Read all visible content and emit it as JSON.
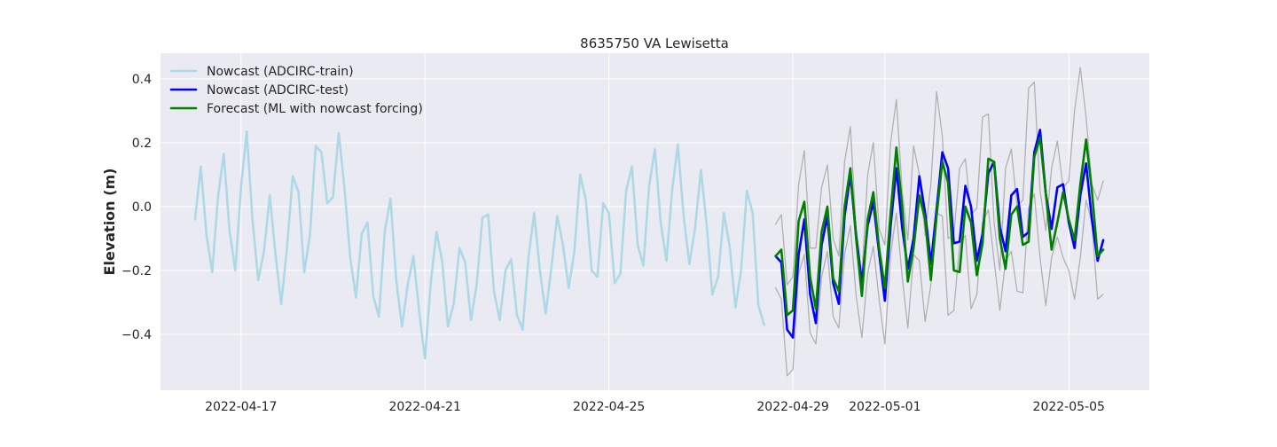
{
  "chart_data": {
    "type": "line",
    "title": "8635750 VA Lewisetta",
    "xlabel": "",
    "ylabel": "Elevation (m)",
    "x_axis": {
      "type": "time",
      "range": [
        "2022-04-15T06:00",
        "2022-05-06T18:00"
      ],
      "tick_dates": [
        "2022-04-17",
        "2022-04-21",
        "2022-04-25",
        "2022-04-29",
        "2022-05-01",
        "2022-05-05"
      ],
      "tick_labels": [
        "2022-04-17",
        "2022-04-21",
        "2022-04-25",
        "2022-04-29",
        "2022-05-01",
        "2022-05-05"
      ]
    },
    "y_axis": {
      "range": [
        -0.575,
        0.48
      ],
      "ticks": [
        -0.4,
        -0.2,
        0.0,
        0.2,
        0.4
      ],
      "tick_labels": [
        "−0.4",
        "−0.2",
        "0.0",
        "0.2",
        "0.4"
      ]
    },
    "grid": true,
    "legend_position": "top-left",
    "bands": [
      {
        "style": "thin-gray",
        "color": "#b0b0b0",
        "x": [
          "2022-04-28T15:00",
          "2022-04-28T18:00",
          "2022-04-28T21:00",
          "2022-04-29T00:00",
          "2022-04-29T03:00",
          "2022-04-29T06:00",
          "2022-04-29T09:00",
          "2022-04-29T12:00",
          "2022-04-29T15:00",
          "2022-04-29T18:00",
          "2022-04-29T21:00",
          "2022-04-30T00:00",
          "2022-04-30T03:00",
          "2022-04-30T06:00",
          "2022-04-30T09:00",
          "2022-04-30T12:00",
          "2022-04-30T15:00",
          "2022-04-30T18:00",
          "2022-04-30T21:00",
          "2022-05-01T00:00",
          "2022-05-01T03:00",
          "2022-05-01T06:00",
          "2022-05-01T09:00",
          "2022-05-01T12:00",
          "2022-05-01T15:00",
          "2022-05-01T18:00",
          "2022-05-01T21:00",
          "2022-05-02T00:00",
          "2022-05-02T03:00",
          "2022-05-02T06:00",
          "2022-05-02T09:00",
          "2022-05-02T12:00",
          "2022-05-02T15:00",
          "2022-05-02T18:00",
          "2022-05-02T21:00",
          "2022-05-03T00:00",
          "2022-05-03T03:00",
          "2022-05-03T06:00",
          "2022-05-03T09:00",
          "2022-05-03T12:00",
          "2022-05-03T15:00",
          "2022-05-03T18:00",
          "2022-05-03T21:00",
          "2022-05-04T00:00",
          "2022-05-04T03:00",
          "2022-05-04T06:00",
          "2022-05-04T09:00",
          "2022-05-04T12:00",
          "2022-05-04T15:00",
          "2022-05-04T18:00",
          "2022-05-04T21:00",
          "2022-05-05T00:00",
          "2022-05-05T03:00",
          "2022-05-05T06:00",
          "2022-05-05T09:00",
          "2022-05-05T12:00",
          "2022-05-05T15:00",
          "2022-05-05T18:00"
        ],
        "upper": [
          -0.055,
          -0.025,
          -0.245,
          -0.22,
          0.07,
          0.175,
          -0.13,
          -0.13,
          0.06,
          0.13,
          -0.1,
          -0.155,
          0.14,
          0.25,
          -0.07,
          -0.22,
          0.1,
          0.2,
          -0.07,
          -0.12,
          0.2,
          0.335,
          0.05,
          -0.105,
          0.19,
          0.1,
          -0.09,
          0.07,
          0.36,
          0.22,
          -0.1,
          -0.09,
          0.12,
          0.15,
          -0.025,
          -0.005,
          0.28,
          0.29,
          -0.05,
          -0.2,
          0.12,
          0.18,
          0.0,
          0.02,
          0.37,
          0.39,
          0.05,
          -0.075,
          0.12,
          0.205,
          0.06,
          0.08,
          0.3,
          0.435,
          0.28,
          0.07,
          0.02,
          0.08
        ],
        "lower": [
          -0.255,
          -0.29,
          -0.53,
          -0.51,
          -0.21,
          -0.15,
          -0.395,
          -0.43,
          -0.22,
          -0.14,
          -0.345,
          -0.38,
          -0.15,
          -0.06,
          -0.28,
          -0.41,
          -0.21,
          -0.125,
          -0.29,
          -0.43,
          -0.15,
          -0.02,
          -0.22,
          -0.38,
          -0.15,
          -0.17,
          -0.36,
          -0.245,
          -0.02,
          -0.03,
          -0.34,
          -0.325,
          -0.12,
          -0.09,
          -0.32,
          -0.275,
          -0.05,
          -0.01,
          -0.17,
          -0.325,
          -0.17,
          -0.14,
          -0.265,
          -0.27,
          -0.005,
          0.04,
          -0.16,
          -0.31,
          -0.16,
          -0.095,
          -0.16,
          -0.2,
          -0.29,
          -0.16,
          0.02,
          -0.05,
          -0.29,
          -0.275
        ]
      }
    ],
    "series": [
      {
        "name": "Nowcast (ADCIRC-train)",
        "color": "#add8e6",
        "x": [
          "2022-04-16T00:00",
          "2022-04-16T03:00",
          "2022-04-16T06:00",
          "2022-04-16T09:00",
          "2022-04-16T12:00",
          "2022-04-16T15:00",
          "2022-04-16T18:00",
          "2022-04-16T21:00",
          "2022-04-17T00:00",
          "2022-04-17T03:00",
          "2022-04-17T06:00",
          "2022-04-17T09:00",
          "2022-04-17T12:00",
          "2022-04-17T15:00",
          "2022-04-17T18:00",
          "2022-04-17T21:00",
          "2022-04-18T00:00",
          "2022-04-18T03:00",
          "2022-04-18T06:00",
          "2022-04-18T09:00",
          "2022-04-18T12:00",
          "2022-04-18T15:00",
          "2022-04-18T18:00",
          "2022-04-18T21:00",
          "2022-04-19T00:00",
          "2022-04-19T03:00",
          "2022-04-19T06:00",
          "2022-04-19T09:00",
          "2022-04-19T12:00",
          "2022-04-19T15:00",
          "2022-04-19T18:00",
          "2022-04-19T21:00",
          "2022-04-20T00:00",
          "2022-04-20T03:00",
          "2022-04-20T06:00",
          "2022-04-20T09:00",
          "2022-04-20T12:00",
          "2022-04-20T15:00",
          "2022-04-20T18:00",
          "2022-04-20T21:00",
          "2022-04-21T00:00",
          "2022-04-21T03:00",
          "2022-04-21T06:00",
          "2022-04-21T09:00",
          "2022-04-21T12:00",
          "2022-04-21T15:00",
          "2022-04-21T18:00",
          "2022-04-21T21:00",
          "2022-04-22T00:00",
          "2022-04-22T03:00",
          "2022-04-22T06:00",
          "2022-04-22T09:00",
          "2022-04-22T12:00",
          "2022-04-22T15:00",
          "2022-04-22T18:00",
          "2022-04-22T21:00",
          "2022-04-23T00:00",
          "2022-04-23T03:00",
          "2022-04-23T06:00",
          "2022-04-23T09:00",
          "2022-04-23T12:00",
          "2022-04-23T15:00",
          "2022-04-23T18:00",
          "2022-04-23T21:00",
          "2022-04-24T00:00",
          "2022-04-24T03:00",
          "2022-04-24T06:00",
          "2022-04-24T09:00",
          "2022-04-24T12:00",
          "2022-04-24T15:00",
          "2022-04-24T18:00",
          "2022-04-24T21:00",
          "2022-04-25T00:00",
          "2022-04-25T03:00",
          "2022-04-25T06:00",
          "2022-04-25T09:00",
          "2022-04-25T12:00",
          "2022-04-25T15:00",
          "2022-04-25T18:00",
          "2022-04-25T21:00",
          "2022-04-26T00:00",
          "2022-04-26T03:00",
          "2022-04-26T06:00",
          "2022-04-26T09:00",
          "2022-04-26T12:00",
          "2022-04-26T15:00",
          "2022-04-26T18:00",
          "2022-04-26T21:00",
          "2022-04-27T00:00",
          "2022-04-27T03:00",
          "2022-04-27T06:00",
          "2022-04-27T09:00",
          "2022-04-27T12:00",
          "2022-04-27T15:00",
          "2022-04-27T18:00",
          "2022-04-27T21:00",
          "2022-04-28T00:00",
          "2022-04-28T03:00",
          "2022-04-28T06:00",
          "2022-04-28T09:00"
        ],
        "y": [
          -0.04,
          0.125,
          -0.09,
          -0.205,
          0.03,
          0.165,
          -0.075,
          -0.2,
          0.06,
          0.235,
          -0.04,
          -0.23,
          -0.14,
          0.035,
          -0.15,
          -0.305,
          -0.13,
          0.095,
          0.045,
          -0.205,
          -0.09,
          0.19,
          0.17,
          0.01,
          0.03,
          0.23,
          0.06,
          -0.16,
          -0.285,
          -0.085,
          -0.05,
          -0.28,
          -0.345,
          -0.08,
          0.025,
          -0.23,
          -0.375,
          -0.245,
          -0.155,
          -0.33,
          -0.475,
          -0.24,
          -0.08,
          -0.17,
          -0.375,
          -0.305,
          -0.13,
          -0.175,
          -0.355,
          -0.245,
          -0.035,
          -0.025,
          -0.265,
          -0.355,
          -0.2,
          -0.165,
          -0.34,
          -0.385,
          -0.16,
          -0.02,
          -0.2,
          -0.335,
          -0.19,
          -0.03,
          -0.12,
          -0.255,
          -0.14,
          0.1,
          0.02,
          -0.2,
          -0.22,
          0.01,
          -0.02,
          -0.24,
          -0.21,
          0.05,
          0.125,
          -0.12,
          -0.185,
          0.065,
          0.18,
          -0.05,
          -0.17,
          0.05,
          0.195,
          -0.03,
          -0.18,
          -0.065,
          0.115,
          -0.055,
          -0.275,
          -0.22,
          -0.02,
          -0.125,
          -0.315,
          -0.2,
          0.05,
          -0.02,
          -0.31,
          -0.37
        ]
      },
      {
        "name": "Nowcast (ADCIRC-test)",
        "color": "#0000ff",
        "x": [
          "2022-04-28T15:00",
          "2022-04-28T18:00",
          "2022-04-28T21:00",
          "2022-04-29T00:00",
          "2022-04-29T03:00",
          "2022-04-29T06:00",
          "2022-04-29T09:00",
          "2022-04-29T12:00",
          "2022-04-29T15:00",
          "2022-04-29T18:00",
          "2022-04-29T21:00",
          "2022-04-30T00:00",
          "2022-04-30T03:00",
          "2022-04-30T06:00",
          "2022-04-30T09:00",
          "2022-04-30T12:00",
          "2022-04-30T15:00",
          "2022-04-30T18:00",
          "2022-04-30T21:00",
          "2022-05-01T00:00",
          "2022-05-01T03:00",
          "2022-05-01T06:00",
          "2022-05-01T09:00",
          "2022-05-01T12:00",
          "2022-05-01T15:00",
          "2022-05-01T18:00",
          "2022-05-01T21:00",
          "2022-05-02T00:00",
          "2022-05-02T03:00",
          "2022-05-02T06:00",
          "2022-05-02T09:00",
          "2022-05-02T12:00",
          "2022-05-02T15:00",
          "2022-05-02T18:00",
          "2022-05-02T21:00",
          "2022-05-03T00:00",
          "2022-05-03T03:00",
          "2022-05-03T06:00",
          "2022-05-03T09:00",
          "2022-05-03T12:00",
          "2022-05-03T15:00",
          "2022-05-03T18:00",
          "2022-05-03T21:00",
          "2022-05-04T00:00",
          "2022-05-04T03:00",
          "2022-05-04T06:00",
          "2022-05-04T09:00",
          "2022-05-04T12:00",
          "2022-05-04T15:00",
          "2022-05-04T18:00",
          "2022-05-04T21:00",
          "2022-05-05T00:00",
          "2022-05-05T03:00",
          "2022-05-05T06:00",
          "2022-05-05T09:00",
          "2022-05-05T12:00",
          "2022-05-05T15:00",
          "2022-05-05T18:00"
        ],
        "y": [
          -0.155,
          -0.175,
          -0.385,
          -0.41,
          -0.15,
          -0.04,
          -0.275,
          -0.365,
          -0.12,
          -0.03,
          -0.24,
          -0.305,
          -0.03,
          0.1,
          -0.09,
          -0.24,
          -0.06,
          0.015,
          -0.145,
          -0.295,
          -0.06,
          0.12,
          -0.065,
          -0.195,
          -0.1,
          0.095,
          -0.02,
          -0.18,
          -0.01,
          0.17,
          0.12,
          -0.115,
          -0.11,
          0.065,
          0.0,
          -0.17,
          -0.085,
          0.105,
          0.14,
          -0.065,
          -0.14,
          0.035,
          0.055,
          -0.095,
          -0.08,
          0.17,
          0.24,
          0.04,
          -0.07,
          0.06,
          0.07,
          -0.05,
          -0.13,
          0.035,
          0.135,
          -0.04,
          -0.17,
          -0.105
        ]
      },
      {
        "name": "Forecast (ML with nowcast forcing)",
        "color": "#008000",
        "x": [
          "2022-04-28T15:00",
          "2022-04-28T18:00",
          "2022-04-28T21:00",
          "2022-04-29T00:00",
          "2022-04-29T03:00",
          "2022-04-29T06:00",
          "2022-04-29T09:00",
          "2022-04-29T12:00",
          "2022-04-29T15:00",
          "2022-04-29T18:00",
          "2022-04-29T21:00",
          "2022-04-30T00:00",
          "2022-04-30T03:00",
          "2022-04-30T06:00",
          "2022-04-30T09:00",
          "2022-04-30T12:00",
          "2022-04-30T15:00",
          "2022-04-30T18:00",
          "2022-04-30T21:00",
          "2022-05-01T00:00",
          "2022-05-01T03:00",
          "2022-05-01T06:00",
          "2022-05-01T09:00",
          "2022-05-01T12:00",
          "2022-05-01T15:00",
          "2022-05-01T18:00",
          "2022-05-01T21:00",
          "2022-05-02T00:00",
          "2022-05-02T03:00",
          "2022-05-02T06:00",
          "2022-05-02T09:00",
          "2022-05-02T12:00",
          "2022-05-02T15:00",
          "2022-05-02T18:00",
          "2022-05-02T21:00",
          "2022-05-03T00:00",
          "2022-05-03T03:00",
          "2022-05-03T06:00",
          "2022-05-03T09:00",
          "2022-05-03T12:00",
          "2022-05-03T15:00",
          "2022-05-03T18:00",
          "2022-05-03T21:00",
          "2022-05-04T00:00",
          "2022-05-04T03:00",
          "2022-05-04T06:00",
          "2022-05-04T09:00",
          "2022-05-04T12:00",
          "2022-05-04T15:00",
          "2022-05-04T18:00",
          "2022-05-04T21:00",
          "2022-05-05T00:00",
          "2022-05-05T03:00",
          "2022-05-05T06:00",
          "2022-05-05T09:00",
          "2022-05-05T12:00",
          "2022-05-05T15:00",
          "2022-05-05T18:00"
        ],
        "y": [
          -0.155,
          -0.135,
          -0.34,
          -0.325,
          -0.045,
          0.015,
          -0.22,
          -0.32,
          -0.08,
          0.0,
          -0.225,
          -0.265,
          0.0,
          0.12,
          -0.1,
          -0.28,
          -0.04,
          0.045,
          -0.13,
          -0.255,
          -0.02,
          0.185,
          0.0,
          -0.235,
          -0.13,
          0.035,
          -0.04,
          -0.23,
          -0.03,
          0.14,
          0.075,
          -0.2,
          -0.205,
          0.0,
          -0.05,
          -0.215,
          -0.115,
          0.15,
          0.14,
          -0.1,
          -0.195,
          -0.025,
          0.0,
          -0.12,
          -0.11,
          0.155,
          0.215,
          0.04,
          -0.135,
          -0.05,
          0.045,
          -0.04,
          -0.105,
          0.07,
          0.21,
          0.05,
          -0.155,
          -0.135
        ]
      }
    ]
  }
}
